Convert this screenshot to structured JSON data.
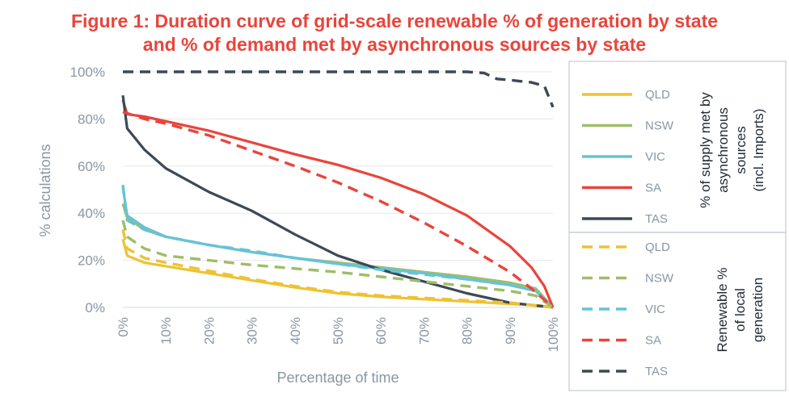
{
  "title_line1": "Figure 1: Duration curve of grid-scale renewable % of generation by state",
  "title_line2": "and % of demand met by asynchronous sources by state",
  "colors": {
    "title": "#e8453c",
    "QLD": "#eec232",
    "NSW": "#9fbd6a",
    "VIC": "#65c3d6",
    "SA": "#e8453c",
    "TAS": "#3c4957",
    "axis_text": "#8a96a3",
    "grid": "#e6e8eb"
  },
  "legend": {
    "solid_group_label": [
      "% of supply met by",
      "asynchronous",
      "sources",
      "(incl. Imports)"
    ],
    "dashed_group_label": [
      "Renewable %",
      "of local",
      "generation"
    ]
  },
  "chart_data": {
    "type": "line",
    "xlabel": "Percentage of time",
    "ylabel": "% calculations",
    "xlim": [
      0,
      100
    ],
    "ylim": [
      0,
      100
    ],
    "x_ticks": [
      "0%",
      "10%",
      "20%",
      "30%",
      "40%",
      "50%",
      "60%",
      "70%",
      "80%",
      "90%",
      "100%"
    ],
    "y_ticks": [
      "0%",
      "20%",
      "40%",
      "60%",
      "80%",
      "100%"
    ],
    "grid": "horizontal",
    "legend_position": "right",
    "series": [
      {
        "name": "QLD",
        "group": "asynchronous",
        "dash": false,
        "color": "#eec232",
        "points": [
          [
            0,
            29
          ],
          [
            1,
            22
          ],
          [
            5,
            19
          ],
          [
            10,
            17.5
          ],
          [
            20,
            14.5
          ],
          [
            30,
            11.5
          ],
          [
            40,
            8.5
          ],
          [
            50,
            6
          ],
          [
            60,
            4.5
          ],
          [
            70,
            3.5
          ],
          [
            80,
            2.5
          ],
          [
            90,
            1.5
          ],
          [
            97,
            0.8
          ],
          [
            100,
            0
          ]
        ]
      },
      {
        "name": "NSW",
        "group": "asynchronous",
        "dash": false,
        "color": "#9fbd6a",
        "points": [
          [
            0,
            44
          ],
          [
            1,
            38
          ],
          [
            5,
            33
          ],
          [
            10,
            30
          ],
          [
            20,
            26.5
          ],
          [
            30,
            23.5
          ],
          [
            40,
            21
          ],
          [
            50,
            19
          ],
          [
            60,
            17
          ],
          [
            70,
            15
          ],
          [
            80,
            13
          ],
          [
            90,
            10.5
          ],
          [
            96,
            8
          ],
          [
            100,
            0
          ]
        ]
      },
      {
        "name": "VIC",
        "group": "asynchronous",
        "dash": false,
        "color": "#65c3d6",
        "points": [
          [
            0,
            51
          ],
          [
            1,
            39
          ],
          [
            5,
            34
          ],
          [
            10,
            30
          ],
          [
            20,
            26.5
          ],
          [
            30,
            23.5
          ],
          [
            40,
            21
          ],
          [
            50,
            18.5
          ],
          [
            60,
            16.5
          ],
          [
            70,
            14.5
          ],
          [
            80,
            12
          ],
          [
            90,
            9.5
          ],
          [
            96,
            7
          ],
          [
            100,
            0
          ]
        ]
      },
      {
        "name": "SA",
        "group": "asynchronous",
        "dash": false,
        "color": "#e8453c",
        "points": [
          [
            0,
            88
          ],
          [
            1,
            82
          ],
          [
            5,
            81
          ],
          [
            10,
            79
          ],
          [
            20,
            75
          ],
          [
            30,
            70
          ],
          [
            40,
            65
          ],
          [
            50,
            60.5
          ],
          [
            60,
            55
          ],
          [
            70,
            48
          ],
          [
            80,
            39
          ],
          [
            90,
            26
          ],
          [
            95,
            17
          ],
          [
            98,
            9
          ],
          [
            100,
            0
          ]
        ]
      },
      {
        "name": "TAS",
        "group": "asynchronous",
        "dash": false,
        "color": "#3c4957",
        "points": [
          [
            0,
            90
          ],
          [
            1,
            76
          ],
          [
            5,
            67
          ],
          [
            10,
            59
          ],
          [
            20,
            49
          ],
          [
            30,
            41
          ],
          [
            40,
            31
          ],
          [
            50,
            22
          ],
          [
            60,
            16
          ],
          [
            70,
            11
          ],
          [
            80,
            6
          ],
          [
            90,
            2
          ],
          [
            100,
            0
          ]
        ]
      },
      {
        "name": "QLD",
        "group": "renewable",
        "dash": true,
        "color": "#eec232",
        "points": [
          [
            0,
            33
          ],
          [
            1,
            25
          ],
          [
            5,
            21
          ],
          [
            10,
            19
          ],
          [
            20,
            15.5
          ],
          [
            30,
            12
          ],
          [
            40,
            9
          ],
          [
            50,
            6.5
          ],
          [
            60,
            5
          ],
          [
            70,
            4
          ],
          [
            80,
            3
          ],
          [
            90,
            2
          ],
          [
            100,
            0
          ]
        ]
      },
      {
        "name": "NSW",
        "group": "renewable",
        "dash": true,
        "color": "#9fbd6a",
        "points": [
          [
            0,
            37
          ],
          [
            1,
            30
          ],
          [
            5,
            25
          ],
          [
            10,
            22
          ],
          [
            20,
            20
          ],
          [
            30,
            18
          ],
          [
            40,
            16.5
          ],
          [
            50,
            15
          ],
          [
            60,
            13
          ],
          [
            70,
            11
          ],
          [
            80,
            9
          ],
          [
            90,
            7
          ],
          [
            96,
            5
          ],
          [
            100,
            0
          ]
        ]
      },
      {
        "name": "VIC",
        "group": "renewable",
        "dash": true,
        "color": "#65c3d6",
        "points": [
          [
            0,
            52
          ],
          [
            1,
            37
          ],
          [
            5,
            33
          ],
          [
            10,
            30
          ],
          [
            20,
            26.5
          ],
          [
            30,
            24
          ],
          [
            40,
            21
          ],
          [
            50,
            18.5
          ],
          [
            60,
            16
          ],
          [
            70,
            14
          ],
          [
            80,
            12
          ],
          [
            90,
            9.5
          ],
          [
            96,
            7
          ],
          [
            100,
            0
          ]
        ]
      },
      {
        "name": "SA",
        "group": "renewable",
        "dash": true,
        "color": "#e8453c",
        "points": [
          [
            0,
            83
          ],
          [
            5,
            80
          ],
          [
            10,
            78
          ],
          [
            20,
            73
          ],
          [
            30,
            66.5
          ],
          [
            40,
            60
          ],
          [
            50,
            53
          ],
          [
            60,
            45
          ],
          [
            70,
            36
          ],
          [
            80,
            26
          ],
          [
            90,
            15
          ],
          [
            95,
            8
          ],
          [
            100,
            0
          ]
        ]
      },
      {
        "name": "TAS",
        "group": "renewable",
        "dash": true,
        "color": "#3c4957",
        "points": [
          [
            0,
            100
          ],
          [
            20,
            100
          ],
          [
            40,
            100
          ],
          [
            60,
            100
          ],
          [
            70,
            100
          ],
          [
            80,
            100
          ],
          [
            84,
            99.5
          ],
          [
            87,
            97
          ],
          [
            90,
            96.5
          ],
          [
            95,
            95.5
          ],
          [
            98,
            94
          ],
          [
            100,
            85
          ]
        ]
      }
    ]
  }
}
